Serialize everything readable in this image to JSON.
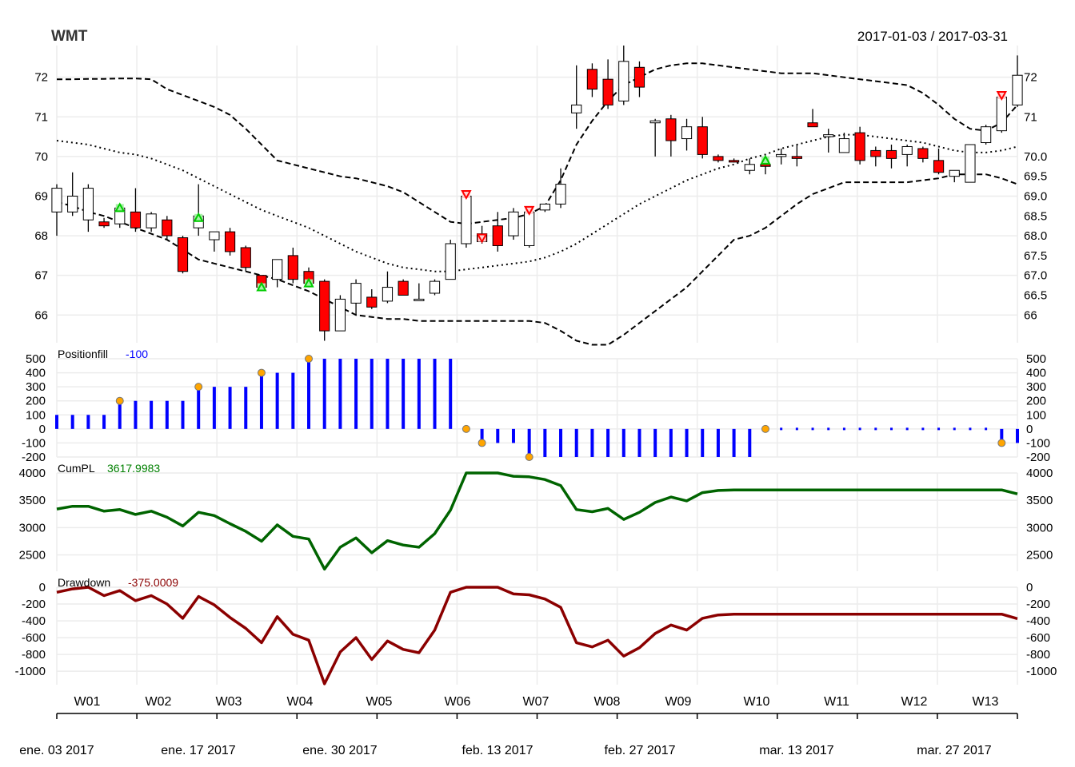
{
  "chart_data": {
    "type": "candlestick",
    "symbol": "WMT",
    "date_range": "2017-01-03 / 2017-03-31",
    "week_labels": [
      "W01",
      "W02",
      "W03",
      "W04",
      "W05",
      "W06",
      "W07",
      "W08",
      "W09",
      "W10",
      "W11",
      "W12",
      "W13"
    ],
    "date_labels": [
      "ene. 03 2017",
      "ene. 17 2017",
      "ene. 30 2017",
      "feb. 13 2017",
      "feb. 27 2017",
      "mar. 13 2017",
      "mar. 27 2017"
    ],
    "price_panel": {
      "y_range": [
        65.3,
        72.8
      ],
      "left_ticks": [
        66,
        67,
        68,
        69,
        70,
        71,
        72
      ],
      "right_ticks": [
        "66",
        "66.5",
        "67.0",
        "67.5",
        "68.0",
        "68.5",
        "69.0",
        "69.5",
        "70.0",
        "71",
        "72"
      ],
      "candles": [
        {
          "o": 68.6,
          "h": 69.3,
          "l": 68.0,
          "c": 69.2
        },
        {
          "o": 68.6,
          "h": 69.6,
          "l": 68.5,
          "c": 69.0
        },
        {
          "o": 68.4,
          "h": 69.3,
          "l": 68.1,
          "c": 69.2
        },
        {
          "o": 68.35,
          "h": 68.45,
          "l": 68.2,
          "c": 68.25
        },
        {
          "o": 68.3,
          "h": 68.7,
          "l": 68.2,
          "c": 68.7
        },
        {
          "o": 68.6,
          "h": 69.2,
          "l": 68.1,
          "c": 68.2
        },
        {
          "o": 68.2,
          "h": 68.6,
          "l": 68.1,
          "c": 68.55
        },
        {
          "o": 68.4,
          "h": 68.5,
          "l": 67.9,
          "c": 68.0
        },
        {
          "o": 67.95,
          "h": 68.0,
          "l": 67.05,
          "c": 67.1
        },
        {
          "o": 68.2,
          "h": 69.3,
          "l": 68.0,
          "c": 68.5
        },
        {
          "o": 67.9,
          "h": 68.1,
          "l": 67.6,
          "c": 68.1
        },
        {
          "o": 68.1,
          "h": 68.2,
          "l": 67.5,
          "c": 67.6
        },
        {
          "o": 67.7,
          "h": 67.75,
          "l": 67.1,
          "c": 67.2
        },
        {
          "o": 67.0,
          "h": 67.0,
          "l": 66.6,
          "c": 66.7
        },
        {
          "o": 66.9,
          "h": 67.4,
          "l": 66.7,
          "c": 67.4
        },
        {
          "o": 67.5,
          "h": 67.7,
          "l": 66.8,
          "c": 66.9
        },
        {
          "o": 67.1,
          "h": 67.2,
          "l": 66.7,
          "c": 66.8
        },
        {
          "o": 66.85,
          "h": 66.9,
          "l": 65.35,
          "c": 65.6
        },
        {
          "o": 65.6,
          "h": 66.5,
          "l": 65.6,
          "c": 66.4
        },
        {
          "o": 66.3,
          "h": 66.9,
          "l": 66.0,
          "c": 66.8
        },
        {
          "o": 66.45,
          "h": 66.65,
          "l": 66.15,
          "c": 66.2
        },
        {
          "o": 66.35,
          "h": 67.1,
          "l": 66.3,
          "c": 66.7
        },
        {
          "o": 66.85,
          "h": 66.9,
          "l": 66.5,
          "c": 66.5
        },
        {
          "o": 66.4,
          "h": 66.8,
          "l": 66.4,
          "c": 66.4
        },
        {
          "o": 66.55,
          "h": 66.9,
          "l": 66.5,
          "c": 66.85
        },
        {
          "o": 66.9,
          "h": 67.9,
          "l": 66.9,
          "c": 67.8
        },
        {
          "o": 67.8,
          "h": 69.1,
          "l": 67.7,
          "c": 69.0
        },
        {
          "o": 68.05,
          "h": 68.25,
          "l": 67.8,
          "c": 67.85
        },
        {
          "o": 68.25,
          "h": 68.6,
          "l": 67.6,
          "c": 67.75
        },
        {
          "o": 68.0,
          "h": 68.7,
          "l": 67.9,
          "c": 68.6
        },
        {
          "o": 67.75,
          "h": 68.6,
          "l": 67.7,
          "c": 68.6
        },
        {
          "o": 68.65,
          "h": 68.8,
          "l": 68.6,
          "c": 68.8
        },
        {
          "o": 68.8,
          "h": 69.7,
          "l": 68.7,
          "c": 69.3
        },
        {
          "o": 71.1,
          "h": 72.3,
          "l": 70.7,
          "c": 71.3
        },
        {
          "o": 72.2,
          "h": 72.35,
          "l": 71.5,
          "c": 71.7
        },
        {
          "o": 71.95,
          "h": 72.45,
          "l": 71.2,
          "c": 71.3
        },
        {
          "o": 71.4,
          "h": 72.8,
          "l": 71.3,
          "c": 72.4
        },
        {
          "o": 72.25,
          "h": 72.4,
          "l": 71.5,
          "c": 71.75
        },
        {
          "o": 70.85,
          "h": 70.95,
          "l": 70.0,
          "c": 70.9
        },
        {
          "o": 70.95,
          "h": 71.05,
          "l": 70.0,
          "c": 70.4
        },
        {
          "o": 70.45,
          "h": 70.95,
          "l": 70.15,
          "c": 70.75
        },
        {
          "o": 70.75,
          "h": 71.0,
          "l": 69.95,
          "c": 70.05
        },
        {
          "o": 70.0,
          "h": 70.05,
          "l": 69.85,
          "c": 69.9
        },
        {
          "o": 69.9,
          "h": 69.95,
          "l": 69.85,
          "c": 69.88
        },
        {
          "o": 69.65,
          "h": 69.95,
          "l": 69.55,
          "c": 69.8
        },
        {
          "o": 69.8,
          "h": 69.9,
          "l": 69.55,
          "c": 69.75
        },
        {
          "o": 70.0,
          "h": 70.2,
          "l": 69.8,
          "c": 70.05
        },
        {
          "o": 70.0,
          "h": 70.3,
          "l": 69.75,
          "c": 69.95
        },
        {
          "o": 70.85,
          "h": 71.2,
          "l": 70.75,
          "c": 70.75
        },
        {
          "o": 70.5,
          "h": 70.7,
          "l": 70.1,
          "c": 70.55
        },
        {
          "o": 70.1,
          "h": 70.6,
          "l": 70.1,
          "c": 70.45
        },
        {
          "o": 70.6,
          "h": 70.75,
          "l": 69.8,
          "c": 69.9
        },
        {
          "o": 70.15,
          "h": 70.25,
          "l": 69.75,
          "c": 70.0
        },
        {
          "o": 70.15,
          "h": 70.3,
          "l": 69.7,
          "c": 69.95
        },
        {
          "o": 70.05,
          "h": 70.3,
          "l": 69.75,
          "c": 70.25
        },
        {
          "o": 70.2,
          "h": 70.25,
          "l": 69.85,
          "c": 69.95
        },
        {
          "o": 69.9,
          "h": 70.2,
          "l": 69.55,
          "c": 69.6
        },
        {
          "o": 69.5,
          "h": 69.65,
          "l": 69.35,
          "c": 69.65
        },
        {
          "o": 69.35,
          "h": 70.3,
          "l": 69.35,
          "c": 70.3
        },
        {
          "o": 70.35,
          "h": 70.8,
          "l": 70.3,
          "c": 70.75
        },
        {
          "o": 70.65,
          "h": 71.6,
          "l": 70.6,
          "c": 71.5
        },
        {
          "o": 71.3,
          "h": 72.55,
          "l": 71.25,
          "c": 72.05
        }
      ],
      "bb_upper": [
        71.95,
        71.95,
        71.96,
        71.96,
        71.97,
        71.97,
        71.95,
        71.7,
        71.55,
        71.4,
        71.25,
        71.05,
        70.7,
        70.3,
        69.9,
        69.8,
        69.7,
        69.6,
        69.5,
        69.45,
        69.35,
        69.25,
        69.1,
        68.85,
        68.6,
        68.35,
        68.3,
        68.35,
        68.4,
        68.45,
        68.55,
        68.75,
        69.4,
        70.3,
        70.9,
        71.4,
        71.8,
        72.0,
        72.2,
        72.3,
        72.35,
        72.35,
        72.3,
        72.25,
        72.2,
        72.15,
        72.1,
        72.1,
        72.1,
        72.05,
        72.0,
        71.95,
        71.9,
        71.85,
        71.8,
        71.6,
        71.3,
        70.95,
        70.7,
        70.65,
        70.85,
        71.3
      ],
      "bb_mid": [
        70.4,
        70.35,
        70.3,
        70.2,
        70.1,
        70.05,
        69.95,
        69.8,
        69.65,
        69.45,
        69.25,
        69.05,
        68.85,
        68.65,
        68.5,
        68.35,
        68.2,
        68.0,
        67.8,
        67.6,
        67.45,
        67.3,
        67.2,
        67.15,
        67.1,
        67.1,
        67.15,
        67.2,
        67.25,
        67.3,
        67.35,
        67.45,
        67.6,
        67.8,
        68.05,
        68.3,
        68.55,
        68.8,
        69.0,
        69.2,
        69.4,
        69.55,
        69.7,
        69.8,
        69.95,
        70.05,
        70.2,
        70.3,
        70.4,
        70.5,
        70.55,
        70.55,
        70.5,
        70.45,
        70.4,
        70.35,
        70.25,
        70.15,
        70.1,
        70.1,
        70.15,
        70.25
      ],
      "bb_lower": [
        68.85,
        68.75,
        68.6,
        68.5,
        68.35,
        68.2,
        68.05,
        67.9,
        67.65,
        67.4,
        67.3,
        67.2,
        67.1,
        67.0,
        66.9,
        66.75,
        66.6,
        66.4,
        66.2,
        66.0,
        65.95,
        65.9,
        65.9,
        65.85,
        65.85,
        65.85,
        65.85,
        65.85,
        65.85,
        65.85,
        65.85,
        65.8,
        65.6,
        65.35,
        65.25,
        65.25,
        65.5,
        65.8,
        66.1,
        66.4,
        66.7,
        67.1,
        67.5,
        67.9,
        68.0,
        68.2,
        68.5,
        68.8,
        69.05,
        69.2,
        69.35,
        69.35,
        69.35,
        69.35,
        69.35,
        69.4,
        69.45,
        69.55,
        69.55,
        69.55,
        69.45,
        69.3
      ],
      "buy_markers": [
        [
          4,
          68.7
        ],
        [
          9,
          68.45
        ],
        [
          13,
          66.7
        ],
        [
          16,
          66.8
        ],
        [
          45,
          69.9
        ]
      ],
      "sell_markers": [
        [
          26,
          69.05
        ],
        [
          27,
          67.95
        ],
        [
          30,
          68.65
        ],
        [
          60,
          71.55
        ]
      ]
    },
    "positionfill_panel": {
      "label": "Positionfill",
      "last_value": "-100",
      "y_range": [
        -200,
        500
      ],
      "ticks": [
        -200,
        -100,
        0,
        100,
        200,
        300,
        400,
        500
      ],
      "values": [
        100,
        100,
        100,
        100,
        200,
        200,
        200,
        200,
        200,
        300,
        300,
        300,
        300,
        400,
        400,
        400,
        500,
        500,
        500,
        500,
        500,
        500,
        500,
        500,
        500,
        500,
        0,
        -100,
        -100,
        -100,
        -200,
        -200,
        -200,
        -200,
        -200,
        -200,
        -200,
        -200,
        -200,
        -200,
        -200,
        -200,
        -200,
        -200,
        -200,
        0,
        0,
        0,
        0,
        0,
        0,
        0,
        0,
        0,
        0,
        0,
        0,
        0,
        0,
        0,
        -100,
        -100
      ],
      "markers": [
        [
          4,
          200
        ],
        [
          9,
          300
        ],
        [
          13,
          400
        ],
        [
          16,
          500
        ],
        [
          26,
          0
        ],
        [
          27,
          -100
        ],
        [
          30,
          -200
        ],
        [
          45,
          0
        ],
        [
          60,
          -100
        ]
      ]
    },
    "cumpl_panel": {
      "label": "CumPL",
      "last_value": "3617.9983",
      "y_range": [
        2200,
        4000
      ],
      "ticks": [
        2500,
        3000,
        3500,
        4000
      ],
      "values": [
        3340,
        3390,
        3390,
        3300,
        3330,
        3240,
        3300,
        3190,
        3030,
        3280,
        3220,
        3070,
        2930,
        2750,
        3050,
        2840,
        2790,
        2240,
        2640,
        2810,
        2540,
        2760,
        2680,
        2640,
        2890,
        3320,
        4010,
        4010,
        4010,
        3940,
        3930,
        3880,
        3770,
        3330,
        3290,
        3350,
        3150,
        3280,
        3460,
        3560,
        3490,
        3640,
        3680,
        3690,
        3690,
        3690,
        3690,
        3690,
        3690,
        3690,
        3690,
        3690,
        3690,
        3690,
        3690,
        3690,
        3690,
        3690,
        3690,
        3690,
        3690,
        3617
      ]
    },
    "drawdown_panel": {
      "label": "Drawdown",
      "last_value": "-375.0009",
      "y_range": [
        -1160,
        0
      ],
      "ticks": [
        -1000,
        -800,
        -600,
        -400,
        -200,
        0
      ],
      "values": [
        -60,
        -20,
        0,
        -100,
        -40,
        -160,
        -100,
        -200,
        -370,
        -110,
        -210,
        -360,
        -490,
        -660,
        -350,
        -560,
        -630,
        -1150,
        -770,
        -600,
        -860,
        -640,
        -740,
        -780,
        -510,
        -60,
        0,
        0,
        0,
        -80,
        -90,
        -140,
        -240,
        -660,
        -710,
        -630,
        -820,
        -720,
        -550,
        -450,
        -510,
        -370,
        -330,
        -320,
        -320,
        -320,
        -320,
        -320,
        -320,
        -320,
        -320,
        -320,
        -320,
        -320,
        -320,
        -320,
        -320,
        -320,
        -320,
        -320,
        -320,
        -375
      ]
    },
    "colors": {
      "down_candle": "#ff0000",
      "up_candle": "#ffffff",
      "position_bars": "#0000ff",
      "markers": "#ffa500",
      "cumpl_line": "#006400",
      "cumpl_label": "#008000",
      "drawdown_line": "#8b0000",
      "drawdown_label": "#8b0000",
      "buy_marker": "#00cc00",
      "sell_marker": "#ff0000",
      "grid": "#ececec"
    }
  }
}
